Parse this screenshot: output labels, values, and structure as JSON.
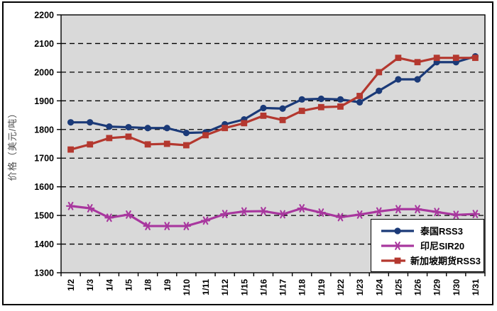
{
  "figure": {
    "kind": "excel-style-line-chart"
  },
  "colors": {
    "figure_bg": "#FFFFFF",
    "plot_bg": "#D9D9D9",
    "border": "#000000",
    "gridline": "#000000",
    "axis_title": "#4D4D4D",
    "series_blue": "#1B3A78",
    "series_magenta": "#A8379E",
    "series_red": "#B4382F"
  },
  "chart_data": {
    "type": "line",
    "title": "",
    "xlabel": "",
    "ylabel": "价格（美元/吨）",
    "ylim": [
      1300,
      2200
    ],
    "ytick_step": 100,
    "yticks": [
      2200,
      2100,
      2000,
      1900,
      1800,
      1700,
      1600,
      1500,
      1400,
      1300
    ],
    "grid": "horizontal-dashed",
    "legend_position": "inside-bottom-right",
    "categories": [
      "1/2",
      "1/3",
      "1/4",
      "1/5",
      "1/8",
      "1/9",
      "1/10",
      "1/11",
      "1/12",
      "1/15",
      "1/16",
      "1/17",
      "1/18",
      "1/19",
      "1/22",
      "1/23",
      "1/24",
      "1/25",
      "1/26",
      "1/29",
      "1/30",
      "1/31"
    ],
    "series": [
      {
        "name": "泰国RSS3",
        "color": "#1B3A78",
        "marker": "circle",
        "values": [
          1825,
          1825,
          1810,
          1808,
          1805,
          1805,
          1788,
          1790,
          1818,
          1835,
          1875,
          1873,
          1905,
          1907,
          1905,
          1895,
          1935,
          1975,
          1975,
          2035,
          2035,
          2055
        ]
      },
      {
        "name": "印尼SIR20",
        "color": "#A8379E",
        "marker": "asterisk",
        "values": [
          1533,
          1525,
          1492,
          1503,
          1463,
          1463,
          1463,
          1482,
          1505,
          1514,
          1515,
          1504,
          1525,
          1510,
          1494,
          1503,
          1514,
          1522,
          1522,
          1512,
          1502,
          1505
        ]
      },
      {
        "name": "新加坡期货RSS3",
        "color": "#B4382F",
        "marker": "square",
        "values": [
          1730,
          1748,
          1770,
          1775,
          1748,
          1750,
          1745,
          1780,
          1805,
          1822,
          1848,
          1833,
          1865,
          1878,
          1880,
          1917,
          2000,
          2050,
          2035,
          2050,
          2050,
          2050
        ]
      }
    ]
  }
}
